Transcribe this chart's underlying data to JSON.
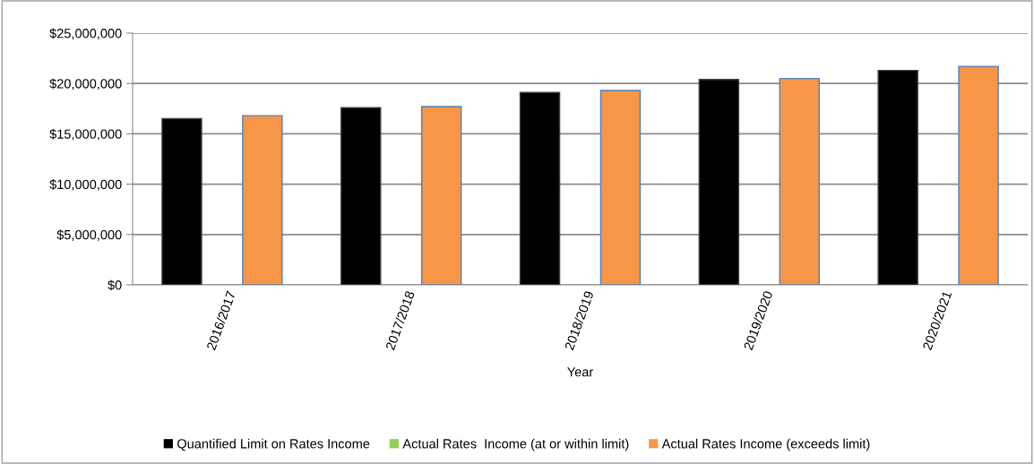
{
  "chart_data": {
    "type": "bar",
    "xlabel": "Year",
    "categories": [
      "2016/2017",
      "2017/2018",
      "2018/2019",
      "2019/2020",
      "2020/2021"
    ],
    "series": [
      {
        "name": "Quantified Limit on Rates Income",
        "color": "#000000",
        "values": [
          16500000,
          17600000,
          19100000,
          20400000,
          21300000
        ]
      },
      {
        "name": "Actual Rates  Income (at or within limit)",
        "color": "#92d050",
        "values": [
          null,
          null,
          null,
          null,
          null
        ]
      },
      {
        "name": "Actual Rates Income (exceeds limit)",
        "color": "#f79646",
        "values": [
          16800000,
          17700000,
          19300000,
          20500000,
          21700000
        ]
      }
    ],
    "ylim": [
      0,
      25000000
    ],
    "yticks": [
      {
        "value": 0,
        "label": "$0"
      },
      {
        "value": 5000000,
        "label": "$5,000,000"
      },
      {
        "value": 10000000,
        "label": "$10,000,000"
      },
      {
        "value": 15000000,
        "label": "$15,000,000"
      },
      {
        "value": 20000000,
        "label": "$20,000,000"
      },
      {
        "value": 25000000,
        "label": "$25,000,000"
      }
    ],
    "grid": "y",
    "legend": "bottom"
  }
}
